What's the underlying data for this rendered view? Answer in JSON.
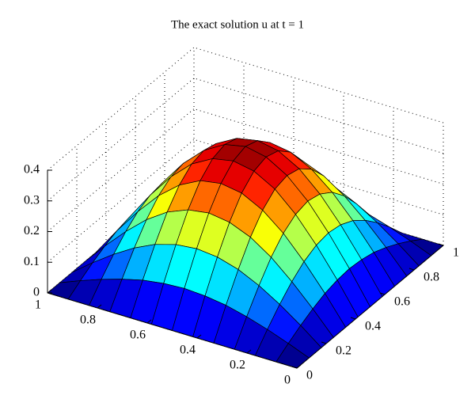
{
  "chart_data": {
    "type": "surface",
    "title": "The exact solution u  at t = 1",
    "x": [
      0,
      0.083,
      0.167,
      0.25,
      0.333,
      0.417,
      0.5,
      0.583,
      0.667,
      0.75,
      0.833,
      0.917,
      1
    ],
    "y": [
      0,
      0.083,
      0.167,
      0.25,
      0.333,
      0.417,
      0.5,
      0.583,
      0.667,
      0.75,
      0.833,
      0.917,
      1
    ],
    "z": [
      [
        0,
        0,
        0,
        0,
        0,
        0,
        0,
        0,
        0,
        0,
        0,
        0,
        0
      ],
      [
        0,
        0.027,
        0.052,
        0.073,
        0.09,
        0.1,
        0.104,
        0.1,
        0.09,
        0.073,
        0.052,
        0.027,
        0
      ],
      [
        0,
        0.052,
        0.1,
        0.141,
        0.173,
        0.193,
        0.2,
        0.193,
        0.173,
        0.141,
        0.1,
        0.052,
        0
      ],
      [
        0,
        0.073,
        0.141,
        0.2,
        0.245,
        0.273,
        0.283,
        0.273,
        0.245,
        0.2,
        0.141,
        0.073,
        0
      ],
      [
        0,
        0.09,
        0.173,
        0.245,
        0.3,
        0.335,
        0.346,
        0.335,
        0.3,
        0.245,
        0.173,
        0.09,
        0
      ],
      [
        0,
        0.1,
        0.193,
        0.273,
        0.335,
        0.373,
        0.386,
        0.373,
        0.335,
        0.273,
        0.193,
        0.1,
        0
      ],
      [
        0,
        0.104,
        0.2,
        0.283,
        0.346,
        0.386,
        0.4,
        0.386,
        0.346,
        0.283,
        0.2,
        0.104,
        0
      ],
      [
        0,
        0.1,
        0.193,
        0.273,
        0.335,
        0.373,
        0.386,
        0.373,
        0.335,
        0.273,
        0.193,
        0.1,
        0
      ],
      [
        0,
        0.09,
        0.173,
        0.245,
        0.3,
        0.335,
        0.346,
        0.335,
        0.3,
        0.245,
        0.173,
        0.09,
        0
      ],
      [
        0,
        0.073,
        0.141,
        0.2,
        0.245,
        0.273,
        0.283,
        0.273,
        0.245,
        0.2,
        0.141,
        0.073,
        0
      ],
      [
        0,
        0.052,
        0.1,
        0.141,
        0.173,
        0.193,
        0.2,
        0.193,
        0.173,
        0.141,
        0.1,
        0.052,
        0
      ],
      [
        0,
        0.027,
        0.052,
        0.073,
        0.09,
        0.1,
        0.104,
        0.1,
        0.09,
        0.073,
        0.052,
        0.027,
        0
      ],
      [
        0,
        0,
        0,
        0,
        0,
        0,
        0,
        0,
        0,
        0,
        0,
        0,
        0
      ]
    ],
    "xlim": [
      0,
      1
    ],
    "ylim": [
      0,
      1
    ],
    "zlim": [
      0,
      0.4
    ],
    "xticks": [
      0,
      0.2,
      0.4,
      0.6,
      0.8,
      1
    ],
    "yticks": [
      0,
      0.2,
      0.4,
      0.6,
      0.8,
      1
    ],
    "zticks": [
      0,
      0.1,
      0.2,
      0.3,
      0.4
    ],
    "colormap": "jet",
    "grid": true
  }
}
